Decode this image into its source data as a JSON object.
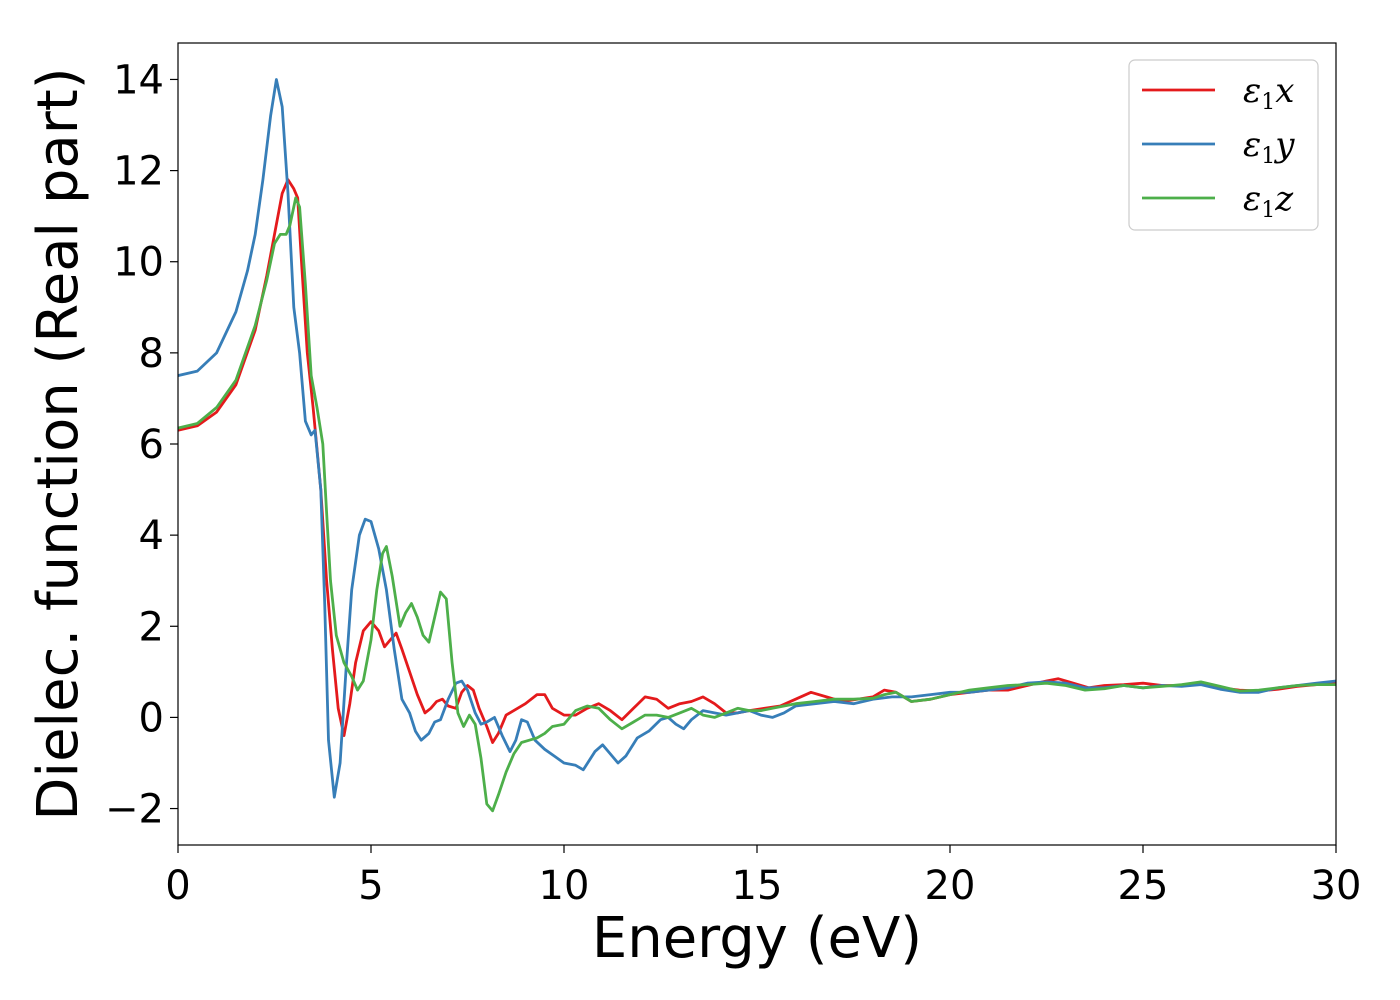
{
  "chart_data": {
    "type": "line",
    "title": "",
    "xlabel": "Energy (eV)",
    "ylabel": "Dielec. function (Real part)",
    "xlim": [
      0,
      30
    ],
    "ylim": [
      -2.8,
      14.8
    ],
    "xticks": [
      0,
      5,
      10,
      15,
      20,
      25,
      30
    ],
    "yticks": [
      -2,
      0,
      2,
      4,
      6,
      8,
      10,
      12,
      14
    ],
    "xtick_labels": [
      "0",
      "5",
      "10",
      "15",
      "20",
      "25",
      "30"
    ],
    "ytick_labels": [
      "−2",
      "0",
      "2",
      "4",
      "6",
      "8",
      "10",
      "12",
      "14"
    ],
    "grid": false,
    "legend_position": "top-right",
    "series": [
      {
        "name": "ε₁x",
        "legend_symbol": "ε",
        "legend_sub": "1",
        "legend_var": "x",
        "color": "#e41a1c",
        "points": [
          [
            0,
            6.3
          ],
          [
            0.5,
            6.4
          ],
          [
            1.0,
            6.7
          ],
          [
            1.5,
            7.3
          ],
          [
            2.0,
            8.5
          ],
          [
            2.3,
            9.7
          ],
          [
            2.5,
            10.6
          ],
          [
            2.7,
            11.5
          ],
          [
            2.85,
            11.8
          ],
          [
            3.0,
            11.6
          ],
          [
            3.1,
            11.4
          ],
          [
            3.2,
            10.0
          ],
          [
            3.35,
            8.0
          ],
          [
            3.5,
            6.8
          ],
          [
            3.7,
            5.0
          ],
          [
            3.85,
            3.0
          ],
          [
            4.0,
            1.5
          ],
          [
            4.15,
            0.2
          ],
          [
            4.3,
            -0.4
          ],
          [
            4.45,
            0.3
          ],
          [
            4.6,
            1.2
          ],
          [
            4.8,
            1.9
          ],
          [
            5.0,
            2.1
          ],
          [
            5.2,
            1.9
          ],
          [
            5.35,
            1.55
          ],
          [
            5.5,
            1.7
          ],
          [
            5.65,
            1.85
          ],
          [
            5.8,
            1.5
          ],
          [
            6.0,
            1.0
          ],
          [
            6.2,
            0.5
          ],
          [
            6.4,
            0.1
          ],
          [
            6.55,
            0.2
          ],
          [
            6.7,
            0.35
          ],
          [
            6.85,
            0.4
          ],
          [
            7.0,
            0.25
          ],
          [
            7.2,
            0.2
          ],
          [
            7.35,
            0.55
          ],
          [
            7.5,
            0.7
          ],
          [
            7.65,
            0.6
          ],
          [
            7.8,
            0.2
          ],
          [
            8.0,
            -0.2
          ],
          [
            8.15,
            -0.55
          ],
          [
            8.3,
            -0.35
          ],
          [
            8.5,
            0.05
          ],
          [
            8.7,
            0.15
          ],
          [
            9.0,
            0.3
          ],
          [
            9.3,
            0.5
          ],
          [
            9.5,
            0.5
          ],
          [
            9.7,
            0.2
          ],
          [
            10.0,
            0.05
          ],
          [
            10.3,
            0.05
          ],
          [
            10.6,
            0.2
          ],
          [
            10.9,
            0.3
          ],
          [
            11.2,
            0.15
          ],
          [
            11.5,
            -0.05
          ],
          [
            11.8,
            0.2
          ],
          [
            12.1,
            0.45
          ],
          [
            12.4,
            0.4
          ],
          [
            12.7,
            0.2
          ],
          [
            13.0,
            0.3
          ],
          [
            13.3,
            0.35
          ],
          [
            13.6,
            0.45
          ],
          [
            13.9,
            0.3
          ],
          [
            14.2,
            0.1
          ],
          [
            14.5,
            0.1
          ],
          [
            14.8,
            0.15
          ],
          [
            15.2,
            0.2
          ],
          [
            15.6,
            0.25
          ],
          [
            16.0,
            0.4
          ],
          [
            16.4,
            0.55
          ],
          [
            16.8,
            0.45
          ],
          [
            17.2,
            0.35
          ],
          [
            17.6,
            0.4
          ],
          [
            18.0,
            0.45
          ],
          [
            18.3,
            0.6
          ],
          [
            18.6,
            0.55
          ],
          [
            19.0,
            0.35
          ],
          [
            19.5,
            0.4
          ],
          [
            20.0,
            0.5
          ],
          [
            20.5,
            0.55
          ],
          [
            21.0,
            0.6
          ],
          [
            21.5,
            0.6
          ],
          [
            22.0,
            0.7
          ],
          [
            22.5,
            0.8
          ],
          [
            22.8,
            0.85
          ],
          [
            23.2,
            0.75
          ],
          [
            23.6,
            0.65
          ],
          [
            24.0,
            0.7
          ],
          [
            24.5,
            0.72
          ],
          [
            25.0,
            0.75
          ],
          [
            25.5,
            0.7
          ],
          [
            26.0,
            0.7
          ],
          [
            26.5,
            0.75
          ],
          [
            27.0,
            0.65
          ],
          [
            27.5,
            0.6
          ],
          [
            28.0,
            0.58
          ],
          [
            28.5,
            0.62
          ],
          [
            29.0,
            0.68
          ],
          [
            29.5,
            0.72
          ],
          [
            30.0,
            0.75
          ]
        ]
      },
      {
        "name": "ε₁y",
        "legend_symbol": "ε",
        "legend_sub": "1",
        "legend_var": "y",
        "color": "#377eb8",
        "points": [
          [
            0,
            7.5
          ],
          [
            0.5,
            7.6
          ],
          [
            1.0,
            8.0
          ],
          [
            1.5,
            8.9
          ],
          [
            1.8,
            9.8
          ],
          [
            2.0,
            10.6
          ],
          [
            2.2,
            11.8
          ],
          [
            2.4,
            13.2
          ],
          [
            2.55,
            14.0
          ],
          [
            2.7,
            13.4
          ],
          [
            2.85,
            11.5
          ],
          [
            3.0,
            9.0
          ],
          [
            3.15,
            8.0
          ],
          [
            3.3,
            6.5
          ],
          [
            3.45,
            6.2
          ],
          [
            3.55,
            6.3
          ],
          [
            3.7,
            5.0
          ],
          [
            3.8,
            2.5
          ],
          [
            3.9,
            -0.5
          ],
          [
            4.05,
            -1.75
          ],
          [
            4.2,
            -1.0
          ],
          [
            4.35,
            1.0
          ],
          [
            4.5,
            2.8
          ],
          [
            4.7,
            4.0
          ],
          [
            4.85,
            4.35
          ],
          [
            5.0,
            4.3
          ],
          [
            5.2,
            3.7
          ],
          [
            5.4,
            2.8
          ],
          [
            5.6,
            1.5
          ],
          [
            5.8,
            0.4
          ],
          [
            6.0,
            0.1
          ],
          [
            6.15,
            -0.3
          ],
          [
            6.3,
            -0.5
          ],
          [
            6.5,
            -0.35
          ],
          [
            6.65,
            -0.1
          ],
          [
            6.8,
            -0.05
          ],
          [
            7.0,
            0.4
          ],
          [
            7.2,
            0.75
          ],
          [
            7.35,
            0.8
          ],
          [
            7.5,
            0.6
          ],
          [
            7.7,
            0.1
          ],
          [
            7.85,
            -0.15
          ],
          [
            8.0,
            -0.1
          ],
          [
            8.2,
            0.0
          ],
          [
            8.4,
            -0.4
          ],
          [
            8.6,
            -0.75
          ],
          [
            8.75,
            -0.5
          ],
          [
            8.9,
            -0.05
          ],
          [
            9.05,
            -0.1
          ],
          [
            9.25,
            -0.5
          ],
          [
            9.5,
            -0.7
          ],
          [
            9.75,
            -0.85
          ],
          [
            10.0,
            -1.0
          ],
          [
            10.3,
            -1.05
          ],
          [
            10.5,
            -1.15
          ],
          [
            10.8,
            -0.75
          ],
          [
            11.0,
            -0.6
          ],
          [
            11.2,
            -0.8
          ],
          [
            11.4,
            -1.0
          ],
          [
            11.6,
            -0.85
          ],
          [
            11.9,
            -0.45
          ],
          [
            12.2,
            -0.3
          ],
          [
            12.5,
            -0.05
          ],
          [
            12.7,
            0.0
          ],
          [
            12.9,
            -0.15
          ],
          [
            13.1,
            -0.25
          ],
          [
            13.3,
            -0.05
          ],
          [
            13.6,
            0.15
          ],
          [
            13.9,
            0.1
          ],
          [
            14.2,
            0.05
          ],
          [
            14.5,
            0.1
          ],
          [
            14.8,
            0.15
          ],
          [
            15.1,
            0.05
          ],
          [
            15.4,
            0.0
          ],
          [
            15.7,
            0.1
          ],
          [
            16.0,
            0.25
          ],
          [
            16.5,
            0.3
          ],
          [
            17.0,
            0.35
          ],
          [
            17.5,
            0.3
          ],
          [
            18.0,
            0.4
          ],
          [
            18.5,
            0.45
          ],
          [
            19.0,
            0.45
          ],
          [
            19.5,
            0.5
          ],
          [
            20.0,
            0.55
          ],
          [
            20.5,
            0.55
          ],
          [
            21.0,
            0.6
          ],
          [
            21.5,
            0.65
          ],
          [
            22.0,
            0.75
          ],
          [
            22.5,
            0.78
          ],
          [
            23.0,
            0.75
          ],
          [
            23.5,
            0.65
          ],
          [
            24.0,
            0.65
          ],
          [
            24.5,
            0.7
          ],
          [
            25.0,
            0.65
          ],
          [
            25.5,
            0.7
          ],
          [
            26.0,
            0.68
          ],
          [
            26.5,
            0.72
          ],
          [
            27.0,
            0.62
          ],
          [
            27.5,
            0.55
          ],
          [
            28.0,
            0.55
          ],
          [
            28.5,
            0.65
          ],
          [
            29.0,
            0.7
          ],
          [
            29.5,
            0.75
          ],
          [
            30.0,
            0.8
          ]
        ]
      },
      {
        "name": "ε₁z",
        "legend_symbol": "ε",
        "legend_sub": "1",
        "legend_var": "z",
        "color": "#4daf4a",
        "points": [
          [
            0,
            6.35
          ],
          [
            0.5,
            6.45
          ],
          [
            1.0,
            6.8
          ],
          [
            1.5,
            7.4
          ],
          [
            2.0,
            8.6
          ],
          [
            2.3,
            9.6
          ],
          [
            2.5,
            10.4
          ],
          [
            2.65,
            10.6
          ],
          [
            2.8,
            10.6
          ],
          [
            2.9,
            10.8
          ],
          [
            3.05,
            11.4
          ],
          [
            3.15,
            11.2
          ],
          [
            3.3,
            9.5
          ],
          [
            3.45,
            7.5
          ],
          [
            3.6,
            6.8
          ],
          [
            3.75,
            6.0
          ],
          [
            3.85,
            4.5
          ],
          [
            3.95,
            3.0
          ],
          [
            4.1,
            1.8
          ],
          [
            4.3,
            1.2
          ],
          [
            4.5,
            0.9
          ],
          [
            4.65,
            0.6
          ],
          [
            4.8,
            0.8
          ],
          [
            5.0,
            1.7
          ],
          [
            5.15,
            2.8
          ],
          [
            5.3,
            3.6
          ],
          [
            5.4,
            3.75
          ],
          [
            5.55,
            3.1
          ],
          [
            5.75,
            2.0
          ],
          [
            5.9,
            2.3
          ],
          [
            6.05,
            2.5
          ],
          [
            6.2,
            2.2
          ],
          [
            6.35,
            1.8
          ],
          [
            6.5,
            1.65
          ],
          [
            6.65,
            2.2
          ],
          [
            6.8,
            2.75
          ],
          [
            6.95,
            2.6
          ],
          [
            7.1,
            1.2
          ],
          [
            7.25,
            0.1
          ],
          [
            7.4,
            -0.2
          ],
          [
            7.55,
            0.05
          ],
          [
            7.7,
            -0.15
          ],
          [
            7.85,
            -0.9
          ],
          [
            8.0,
            -1.9
          ],
          [
            8.15,
            -2.05
          ],
          [
            8.3,
            -1.7
          ],
          [
            8.5,
            -1.2
          ],
          [
            8.7,
            -0.8
          ],
          [
            8.9,
            -0.55
          ],
          [
            9.1,
            -0.5
          ],
          [
            9.3,
            -0.45
          ],
          [
            9.5,
            -0.35
          ],
          [
            9.7,
            -0.2
          ],
          [
            10.0,
            -0.15
          ],
          [
            10.3,
            0.15
          ],
          [
            10.6,
            0.25
          ],
          [
            10.9,
            0.2
          ],
          [
            11.2,
            -0.05
          ],
          [
            11.5,
            -0.25
          ],
          [
            11.8,
            -0.1
          ],
          [
            12.1,
            0.05
          ],
          [
            12.4,
            0.05
          ],
          [
            12.7,
            0.0
          ],
          [
            13.0,
            0.1
          ],
          [
            13.3,
            0.2
          ],
          [
            13.6,
            0.05
          ],
          [
            13.9,
            0.0
          ],
          [
            14.2,
            0.1
          ],
          [
            14.5,
            0.2
          ],
          [
            14.8,
            0.15
          ],
          [
            15.1,
            0.15
          ],
          [
            15.4,
            0.2
          ],
          [
            15.7,
            0.25
          ],
          [
            16.0,
            0.3
          ],
          [
            16.5,
            0.35
          ],
          [
            17.0,
            0.4
          ],
          [
            17.5,
            0.4
          ],
          [
            18.0,
            0.42
          ],
          [
            18.3,
            0.5
          ],
          [
            18.6,
            0.55
          ],
          [
            19.0,
            0.35
          ],
          [
            19.5,
            0.4
          ],
          [
            20.0,
            0.5
          ],
          [
            20.5,
            0.6
          ],
          [
            21.0,
            0.65
          ],
          [
            21.5,
            0.7
          ],
          [
            22.0,
            0.72
          ],
          [
            22.5,
            0.75
          ],
          [
            23.0,
            0.7
          ],
          [
            23.5,
            0.6
          ],
          [
            24.0,
            0.63
          ],
          [
            24.5,
            0.7
          ],
          [
            25.0,
            0.65
          ],
          [
            25.5,
            0.68
          ],
          [
            26.0,
            0.72
          ],
          [
            26.5,
            0.78
          ],
          [
            27.0,
            0.68
          ],
          [
            27.5,
            0.58
          ],
          [
            28.0,
            0.6
          ],
          [
            28.5,
            0.65
          ],
          [
            29.0,
            0.7
          ],
          [
            29.5,
            0.72
          ],
          [
            30.0,
            0.72
          ]
        ]
      }
    ]
  }
}
